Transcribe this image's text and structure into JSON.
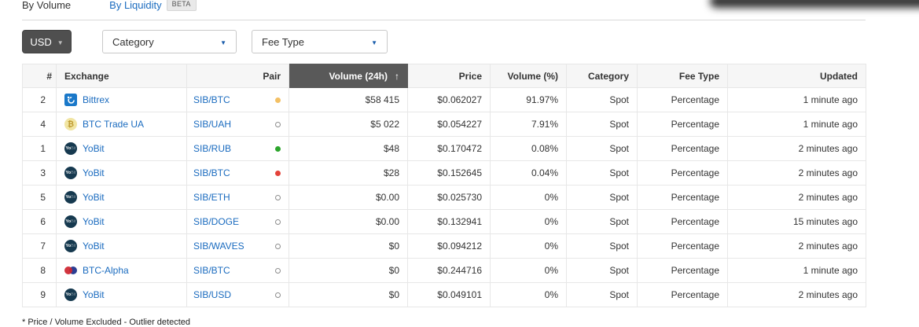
{
  "colors": {
    "link_blue": "#1a6bbf",
    "caret_blue": "#1a5dab",
    "sort_header_bg": "#595959",
    "button_dark_bg": "#4f4f4f",
    "badge_bg": "#e9e9e9",
    "dot_yellow": "#f3c064",
    "dot_green": "#2ca52c",
    "dot_red": "#e4423a"
  },
  "page": {
    "tabs": [
      {
        "label": "By Volume",
        "active": true
      },
      {
        "label": "By Liquidity",
        "badge": "BETA"
      }
    ],
    "filters": {
      "currency": {
        "label": "USD",
        "caret_icon": "▼"
      },
      "selects": [
        {
          "value": "Category",
          "caret_icon": "▼"
        },
        {
          "value": "Fee Type",
          "caret_icon": "▼"
        }
      ]
    },
    "footnote": "* Price / Volume Excluded - Outlier detected"
  },
  "table": {
    "columns": [
      {
        "key": "rank",
        "label": "#"
      },
      {
        "key": "exchange",
        "label": "Exchange"
      },
      {
        "key": "pair",
        "label": "Pair"
      },
      {
        "key": "volume_24h",
        "label": "Volume (24h)",
        "sorted": true,
        "sort_arrow": "↑"
      },
      {
        "key": "price",
        "label": "Price"
      },
      {
        "key": "volume_pct",
        "label": "Volume (%)"
      },
      {
        "key": "category",
        "label": "Category"
      },
      {
        "key": "fee_type",
        "label": "Fee Type"
      },
      {
        "key": "updated",
        "label": "Updated"
      }
    ],
    "rows": [
      {
        "rank": "2",
        "exchange": "Bittrex",
        "icon": "bittrex",
        "pair": "SIB/BTC",
        "dot": "yellow",
        "volume_24h": "$58 415",
        "price": "$0.062027",
        "volume_pct": "91.97%",
        "category": "Spot",
        "fee_type": "Percentage",
        "updated": "1 minute ago"
      },
      {
        "rank": "4",
        "exchange": "BTC Trade UA",
        "icon": "btc-trade-ua",
        "pair": "SIB/UAH",
        "dot": "hollow",
        "volume_24h": "$5 022",
        "price": "$0.054227",
        "volume_pct": "7.91%",
        "category": "Spot",
        "fee_type": "Percentage",
        "updated": "1 minute ago"
      },
      {
        "rank": "1",
        "exchange": "YoBit",
        "icon": "yobit",
        "pair": "SIB/RUB",
        "dot": "green",
        "volume_24h": "$48",
        "price": "$0.170472",
        "volume_pct": "0.08%",
        "category": "Spot",
        "fee_type": "Percentage",
        "updated": "2 minutes ago"
      },
      {
        "rank": "3",
        "exchange": "YoBit",
        "icon": "yobit",
        "pair": "SIB/BTC",
        "dot": "red",
        "volume_24h": "$28",
        "price": "$0.152645",
        "volume_pct": "0.04%",
        "category": "Spot",
        "fee_type": "Percentage",
        "updated": "2 minutes ago"
      },
      {
        "rank": "5",
        "exchange": "YoBit",
        "icon": "yobit",
        "pair": "SIB/ETH",
        "dot": "hollow",
        "volume_24h": "$0.00",
        "price": "$0.025730",
        "volume_pct": "0%",
        "category": "Spot",
        "fee_type": "Percentage",
        "updated": "2 minutes ago"
      },
      {
        "rank": "6",
        "exchange": "YoBit",
        "icon": "yobit",
        "pair": "SIB/DOGE",
        "dot": "hollow",
        "volume_24h": "$0.00",
        "price": "$0.132941",
        "volume_pct": "0%",
        "category": "Spot",
        "fee_type": "Percentage",
        "updated": "15 minutes ago"
      },
      {
        "rank": "7",
        "exchange": "YoBit",
        "icon": "yobit",
        "pair": "SIB/WAVES",
        "dot": "hollow",
        "volume_24h": "$0",
        "price": "$0.094212",
        "volume_pct": "0%",
        "category": "Spot",
        "fee_type": "Percentage",
        "updated": "2 minutes ago"
      },
      {
        "rank": "8",
        "exchange": "BTC-Alpha",
        "icon": "btc-alpha",
        "pair": "SIB/BTC",
        "dot": "hollow",
        "volume_24h": "$0",
        "price": "$0.244716",
        "volume_pct": "0%",
        "category": "Spot",
        "fee_type": "Percentage",
        "updated": "1 minute ago"
      },
      {
        "rank": "9",
        "exchange": "YoBit",
        "icon": "yobit",
        "pair": "SIB/USD",
        "dot": "hollow",
        "volume_24h": "$0",
        "price": "$0.049101",
        "volume_pct": "0%",
        "category": "Spot",
        "fee_type": "Percentage",
        "updated": "2 minutes ago"
      }
    ]
  }
}
